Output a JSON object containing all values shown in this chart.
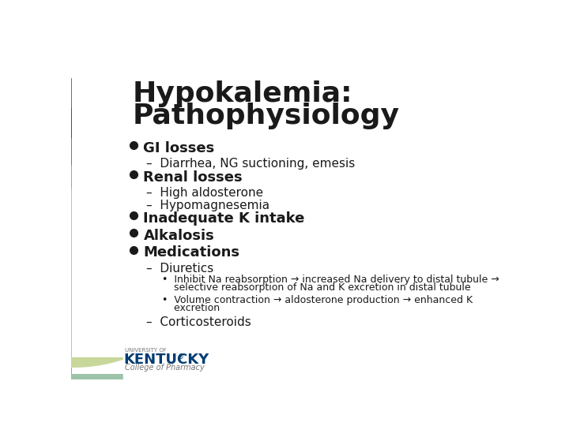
{
  "title_line1": "Hypokalemia:",
  "title_line2": "Pathophysiology",
  "title_fontsize": 26,
  "title_color": "#1a1a1a",
  "background_color": "#ffffff",
  "text_color": "#1a1a1a",
  "content": [
    {
      "type": "bullet1",
      "text": "GI losses"
    },
    {
      "type": "bullet2",
      "text": "–  Diarrhea, NG suctioning, emesis"
    },
    {
      "type": "bullet1",
      "text": "Renal losses"
    },
    {
      "type": "bullet2",
      "text": "–  High aldosterone"
    },
    {
      "type": "bullet2",
      "text": "–  Hypomagnesemia"
    },
    {
      "type": "bullet1",
      "text": "Inadequate K intake"
    },
    {
      "type": "bullet1",
      "text": "Alkalosis"
    },
    {
      "type": "bullet1",
      "text": "Medications"
    },
    {
      "type": "bullet2",
      "text": "–  Diuretics"
    },
    {
      "type": "bullet3a",
      "text": "•  Inhibit Na reabsorption → increased Na delivery to distal tubule →",
      "text2": "   selective reabsorption of Na and K excretion in distal tubule"
    },
    {
      "type": "bullet3a",
      "text": "•  Volume contraction → aldosterone production → enhanced K",
      "text2": "   excretion"
    },
    {
      "type": "bullet2",
      "text": "–  Corticosteroids"
    }
  ],
  "arc_colors": [
    "#003d73",
    "#00529b",
    "#5b9bd5",
    "#9dc3a8",
    "#c8d89a"
  ],
  "logo_color": "#003d73",
  "logo_text": "KENTUCKY",
  "logo_reg": "®",
  "logo_univ": "UNIVERSITY OF",
  "logo_sub": "College of Pharmacy"
}
